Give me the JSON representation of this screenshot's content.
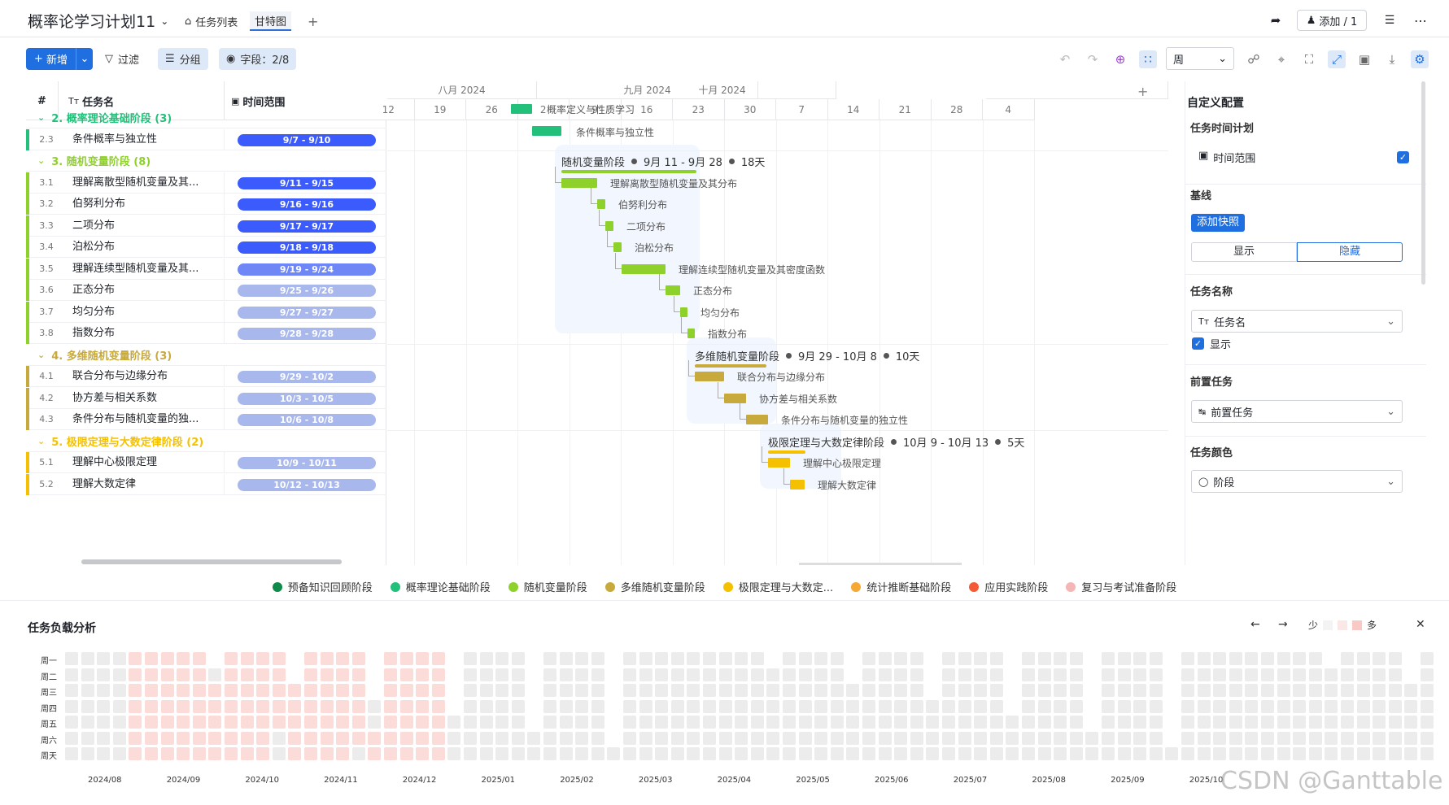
{
  "header": {
    "title": "概率论学习计划11",
    "tabs": [
      "任务列表",
      "甘特图"
    ],
    "add_tab": "+",
    "add_collab": "添加 / 1"
  },
  "toolbar": {
    "new_label": "新增",
    "filter_label": "过滤",
    "group_label": "分组",
    "fields_label": "字段：2/8",
    "timescale": "周"
  },
  "grid": {
    "col_num": "#",
    "col_name": "任务名",
    "col_range": "时间范围",
    "rows": [
      {
        "kind": "group",
        "label": "2. 概率理论基础阶段 (3)",
        "color": "#22c07a"
      },
      {
        "kind": "task",
        "num": "2.3",
        "name": "条件概率与独立性",
        "range": "9/7 - 9/10",
        "color": "#22c07a",
        "pill": "#3b5bfd"
      },
      {
        "kind": "group",
        "label": "3. 随机变量阶段 (8)",
        "color": "#8fd12b"
      },
      {
        "kind": "task",
        "num": "3.1",
        "name": "理解离散型随机变量及其...",
        "range": "9/11 - 9/15",
        "color": "#8fd12b",
        "pill": "#3b5bfd"
      },
      {
        "kind": "task",
        "num": "3.2",
        "name": "伯努利分布",
        "range": "9/16 - 9/16",
        "color": "#8fd12b",
        "pill": "#3b5bfd"
      },
      {
        "kind": "task",
        "num": "3.3",
        "name": "二项分布",
        "range": "9/17 - 9/17",
        "color": "#8fd12b",
        "pill": "#3b5bfd"
      },
      {
        "kind": "task",
        "num": "3.4",
        "name": "泊松分布",
        "range": "9/18 - 9/18",
        "color": "#8fd12b",
        "pill": "#3b5bfd"
      },
      {
        "kind": "task",
        "num": "3.5",
        "name": "理解连续型随机变量及其...",
        "range": "9/19 - 9/24",
        "color": "#8fd12b",
        "pill": "#6f86f6"
      },
      {
        "kind": "task",
        "num": "3.6",
        "name": "正态分布",
        "range": "9/25 - 9/26",
        "color": "#8fd12b",
        "pill": "#a8b8ec"
      },
      {
        "kind": "task",
        "num": "3.7",
        "name": "均匀分布",
        "range": "9/27 - 9/27",
        "color": "#8fd12b",
        "pill": "#a8b8ec"
      },
      {
        "kind": "task",
        "num": "3.8",
        "name": "指数分布",
        "range": "9/28 - 9/28",
        "color": "#8fd12b",
        "pill": "#a8b8ec"
      },
      {
        "kind": "group",
        "label": "4. 多维随机变量阶段 (3)",
        "color": "#c8a93b"
      },
      {
        "kind": "task",
        "num": "4.1",
        "name": "联合分布与边缘分布",
        "range": "9/29 - 10/2",
        "color": "#c8a93b",
        "pill": "#a8b8ec"
      },
      {
        "kind": "task",
        "num": "4.2",
        "name": "协方差与相关系数",
        "range": "10/3 - 10/5",
        "color": "#c8a93b",
        "pill": "#a8b8ec"
      },
      {
        "kind": "task",
        "num": "4.3",
        "name": "条件分布与随机变量的独...",
        "range": "10/6 - 10/8",
        "color": "#c8a93b",
        "pill": "#a8b8ec"
      },
      {
        "kind": "group",
        "label": "5. 极限定理与大数定律阶段 (2)",
        "color": "#f5c000"
      },
      {
        "kind": "task",
        "num": "5.1",
        "name": "理解中心极限定理",
        "range": "10/9 - 10/11",
        "color": "#f5c000",
        "pill": "#a8b8ec"
      },
      {
        "kind": "task",
        "num": "5.2",
        "name": "理解大数定律",
        "range": "10/12 - 10/13",
        "color": "#f5c000",
        "pill": "#a8b8ec"
      }
    ]
  },
  "gantt": {
    "months": [
      "八月 2024",
      "九月 2024",
      "十月 2024"
    ],
    "weeks": [
      "12",
      "19",
      "26",
      "2",
      "9",
      "16",
      "23",
      "30",
      "7",
      "14",
      "21",
      "28",
      "4"
    ],
    "top_labels": [
      "概率定义与性质学习",
      "条件概率与独立性"
    ],
    "summaries": [
      {
        "name": "随机变量阶段",
        "range": "9月 11 - 9月 28",
        "days": "18天"
      },
      {
        "name": "多维随机变量阶段",
        "range": "9月 29 - 10月 8",
        "days": "10天"
      },
      {
        "name": "极限定理与大数定律阶段",
        "range": "10月 9 - 10月 13",
        "days": "5天"
      }
    ],
    "task_labels": [
      "理解离散型随机变量及其分布",
      "伯努利分布",
      "二项分布",
      "泊松分布",
      "理解连续型随机变量及其密度函数",
      "正态分布",
      "均匀分布",
      "指数分布",
      "联合分布与边缘分布",
      "协方差与相关系数",
      "条件分布与随机变量的独立性",
      "理解中心极限定理",
      "理解大数定律"
    ]
  },
  "panel": {
    "title": "自定义配置",
    "plan_label": "任务时间计划",
    "range_label": "时间范围",
    "baseline_label": "基线",
    "snapshot_btn": "添加快照",
    "show_label": "显示",
    "hide_label": "隐藏",
    "task_name_label": "任务名称",
    "task_name_value": "任务名",
    "show_check_label": "显示",
    "pre_task_label": "前置任务",
    "pre_task_value": "前置任务",
    "color_label": "任务颜色",
    "color_value": "阶段"
  },
  "legend": [
    {
      "label": "预备知识回顾阶段",
      "color": "#0f8a4a"
    },
    {
      "label": "概率理论基础阶段",
      "color": "#22c07a"
    },
    {
      "label": "随机变量阶段",
      "color": "#8fd12b"
    },
    {
      "label": "多维随机变量阶段",
      "color": "#c8a93b"
    },
    {
      "label": "极限定理与大数定...",
      "color": "#f5c000"
    },
    {
      "label": "统计推断基础阶段",
      "color": "#f5a833"
    },
    {
      "label": "应用实践阶段",
      "color": "#f45b35"
    },
    {
      "label": "复习与考试准备阶段",
      "color": "#f7b6b6"
    }
  ],
  "heatmap": {
    "title": "任务负载分析",
    "days": [
      "周一",
      "周二",
      "周三",
      "周四",
      "周五",
      "周六",
      "周天"
    ],
    "months": [
      "2024/08",
      "2024/09",
      "2024/10",
      "2024/11",
      "2024/12",
      "2025/01",
      "2025/02",
      "2025/03",
      "2025/04",
      "2025/05",
      "2025/06",
      "2025/07",
      "2025/08",
      "2025/09",
      "2025/10"
    ],
    "less": "少",
    "more": "多"
  },
  "watermark": "CSDN @Ganttable"
}
